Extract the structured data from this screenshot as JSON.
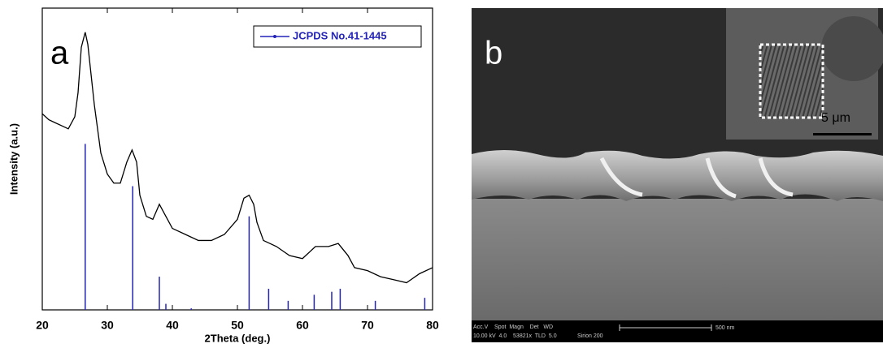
{
  "chart_data": {
    "type": "line",
    "panel_label": "a",
    "xlabel": "2Theta (deg.)",
    "ylabel": "Intensity (a.u.)",
    "xlim": [
      20,
      80
    ],
    "xticks": [
      20,
      30,
      40,
      50,
      60,
      70,
      80
    ],
    "ylim": [
      0,
      100
    ],
    "legend": "top-right",
    "series": [
      {
        "color": "#000000",
        "x": [
          20,
          21,
          22,
          23,
          24,
          25,
          25.5,
          26,
          26.6,
          27,
          27.5,
          28,
          29,
          30,
          31,
          32,
          33,
          33.8,
          34.5,
          35,
          36,
          37,
          38,
          39,
          40,
          42,
          44,
          46,
          48,
          50,
          51,
          51.8,
          52.5,
          53,
          54,
          56,
          58,
          60,
          62,
          64,
          65.5,
          67,
          68,
          70,
          72,
          74,
          76,
          78,
          80
        ],
        "values": [
          65,
          63,
          62,
          61,
          60,
          64,
          72,
          87,
          92,
          88,
          78,
          68,
          52,
          45,
          42,
          42,
          49,
          53,
          49,
          38,
          31,
          30,
          35,
          31,
          27,
          25,
          23,
          23,
          25,
          30,
          37,
          38,
          35,
          29,
          23,
          21,
          18,
          17,
          21,
          21,
          22,
          18,
          14,
          13,
          11,
          10,
          9,
          12,
          14
        ]
      },
      {
        "name": "JCPDS No.41-1445",
        "color": "#2424b8",
        "style": "stick",
        "x": [
          26.6,
          33.9,
          38,
          39,
          42.9,
          51.8,
          54.8,
          57.8,
          61.8,
          64.5,
          65.8,
          71.2,
          78.8
        ],
        "values": [
          55,
          41,
          11,
          2,
          0.5,
          31,
          7,
          3,
          5,
          6,
          7,
          3,
          4
        ]
      }
    ]
  },
  "image_panel": {
    "panel_label": "b",
    "inset_scale": "5 μm",
    "scale_bar": "500 nm",
    "footer_header": "Acc.V    Spot  Magn    Det   WD",
    "footer_values": "10.00 kV  4.0    53821x  TLD  5.0",
    "instrument": "Sirion 200"
  }
}
